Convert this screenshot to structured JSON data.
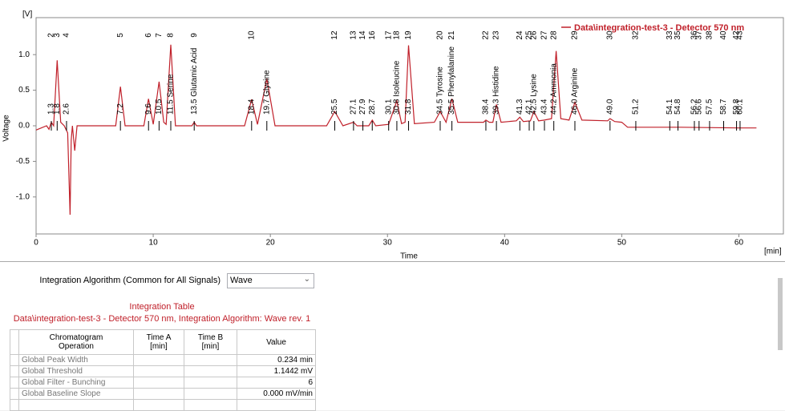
{
  "chart_data": {
    "type": "line",
    "y_unit": "[V]",
    "ylabel": "Voltage",
    "xlabel": "Time",
    "x_unit": "[min]",
    "xlim": [
      0,
      63.8
    ],
    "ylim": [
      -1.52,
      1.52
    ],
    "xticks": [
      0,
      10,
      20,
      30,
      40,
      50,
      60
    ],
    "yticks": [
      {
        "value": -1.0,
        "label": "-1.0"
      },
      {
        "value": -0.5,
        "label": "-0.5"
      },
      {
        "value": 0.0,
        "label": "0.0"
      },
      {
        "value": 0.5,
        "label": "0.5"
      },
      {
        "value": 1.0,
        "label": "1.0"
      }
    ],
    "legend": "top-right",
    "series": [
      {
        "name": "Data\\integration-test-3 - Detector  570 nm",
        "color": "#c0202a",
        "x": [
          0,
          0.9,
          1.1,
          1.3,
          1.5,
          1.8,
          2.1,
          2.4,
          2.7,
          2.9,
          3.0,
          3.1,
          3.3,
          3.5,
          4.0,
          6.8,
          7.2,
          7.6,
          9.2,
          9.6,
          10.0,
          10.5,
          10.9,
          11.1,
          11.5,
          11.9,
          13.3,
          13.5,
          13.7,
          17.8,
          18.4,
          18.9,
          19.7,
          20.4,
          24.8,
          25.5,
          26.2,
          27.1,
          27.4,
          28.4,
          28.7,
          29.0,
          30.1,
          30.8,
          31.2,
          31.5,
          31.8,
          32.3,
          34.0,
          34.5,
          35.0,
          35.5,
          36.0,
          38.2,
          38.4,
          38.7,
          39.0,
          39.3,
          39.7,
          41.0,
          41.3,
          41.6,
          42.2,
          42.5,
          42.9,
          43.4,
          44.0,
          44.4,
          44.8,
          45.5,
          46.0,
          46.6,
          48.8,
          49.0,
          49.4,
          50.0,
          50.5,
          51.2,
          55,
          60,
          61.5
        ],
        "values": [
          -0.06,
          0.0,
          -0.05,
          0.05,
          0.0,
          0.92,
          0.05,
          0.0,
          -0.1,
          -1.25,
          -0.2,
          0.0,
          -0.35,
          0.0,
          0.0,
          0.0,
          0.55,
          0.0,
          0.0,
          0.38,
          0.02,
          0.62,
          0.05,
          0.02,
          1.14,
          0.0,
          0.0,
          0.05,
          0.0,
          0.0,
          0.37,
          0.02,
          0.66,
          0.0,
          0.0,
          0.2,
          0.0,
          0.05,
          0.0,
          0.0,
          0.08,
          0.0,
          0.02,
          0.35,
          0.03,
          0.05,
          1.13,
          0.03,
          0.05,
          0.2,
          0.05,
          0.38,
          0.05,
          0.05,
          0.08,
          0.05,
          0.05,
          0.3,
          0.05,
          0.07,
          0.12,
          0.06,
          0.07,
          0.2,
          0.07,
          0.08,
          0.1,
          1.05,
          0.1,
          0.08,
          0.33,
          0.08,
          0.07,
          0.1,
          0.06,
          0.05,
          -0.02,
          -0.02,
          -0.02,
          -0.03,
          -0.03
        ]
      }
    ],
    "peaks": [
      {
        "time": 1.3,
        "label": "1.3",
        "id": "2"
      },
      {
        "time": 1.8,
        "label": "1.8",
        "id": "3"
      },
      {
        "time": 2.6,
        "label": "2.6",
        "id": "4"
      },
      {
        "time": 7.2,
        "label": "7.2",
        "id": "5"
      },
      {
        "time": 9.6,
        "label": "9.6",
        "id": "6"
      },
      {
        "time": 10.5,
        "label": "10.5",
        "id": "7"
      },
      {
        "time": 11.5,
        "label": "11.5 Serine",
        "id": "8"
      },
      {
        "time": 13.5,
        "label": "13.5 Glutamic Acid",
        "id": "9"
      },
      {
        "time": 18.4,
        "label": "18.4",
        "id": "10"
      },
      {
        "time": 19.7,
        "label": "19.7 Glycine"
      },
      {
        "time": 25.5,
        "label": "25.5",
        "id": "12"
      },
      {
        "time": 27.1,
        "label": "27.1",
        "id": "13"
      },
      {
        "time": 27.9,
        "label": "27.9",
        "id": "14"
      },
      {
        "time": 28.7,
        "label": "28.7",
        "id": "16"
      },
      {
        "time": 30.1,
        "label": "30.1",
        "id": "17"
      },
      {
        "time": 30.8,
        "label": "30.8 Isoleucine",
        "id": "18"
      },
      {
        "time": 31.8,
        "label": "31.8",
        "id": "19"
      },
      {
        "time": 34.5,
        "label": "34.5 Tyrosine",
        "id": "20"
      },
      {
        "time": 35.5,
        "label": "35.5 Phenylalanine",
        "id": "21"
      },
      {
        "time": 38.4,
        "label": "38.4",
        "id": "22"
      },
      {
        "time": 39.3,
        "label": "39.3 Histidine",
        "id": "23"
      },
      {
        "time": 41.3,
        "label": "41.3",
        "id": "24"
      },
      {
        "time": 42.1,
        "label": "42.1",
        "id": "25"
      },
      {
        "time": 42.5,
        "label": "42.5 Lysine",
        "id": "26"
      },
      {
        "time": 43.4,
        "label": "43.4",
        "id": "27"
      },
      {
        "time": 44.2,
        "label": "44.2 Ammonia",
        "id": "28"
      },
      {
        "time": 46.0,
        "label": "46.0 Arginine",
        "id": "29"
      },
      {
        "time": 49.0,
        "label": "49.0",
        "id": "30"
      },
      {
        "time": 51.2,
        "label": "51.2",
        "id": "32"
      },
      {
        "time": 54.1,
        "label": "54.1",
        "id": "33"
      },
      {
        "time": 54.8,
        "label": "54.8",
        "id": "35"
      },
      {
        "time": 56.2,
        "label": "56.2",
        "id": "36"
      },
      {
        "time": 56.6,
        "label": "56.6",
        "id": "37"
      },
      {
        "time": 57.5,
        "label": "57.5",
        "id": "38"
      },
      {
        "time": 58.7,
        "label": "58.7",
        "id": "40"
      },
      {
        "time": 59.8,
        "label": "59.8",
        "id": "42"
      },
      {
        "time": 60.1,
        "label": "60.1",
        "id": "43"
      }
    ]
  },
  "integration": {
    "algorithm_label": "Integration Algorithm (Common for All Signals)",
    "algorithm": "Wave",
    "table_title": "Integration Table",
    "table_subtitle": "Data\\integration-test-3 - Detector  570 nm, Integration Algorithm: Wave rev. 1",
    "columns": [
      "Chromatogram\nOperation",
      "Time A\n[min]",
      "Time B\n[min]",
      "Value"
    ],
    "rows": [
      [
        "Global Peak Width",
        "0.234 min"
      ],
      [
        "Global Threshold",
        "1.1442 mV"
      ],
      [
        "Global Filter - Bunching",
        "6"
      ],
      [
        "Global Baseline Slope",
        "0.000 mV/min"
      ]
    ]
  }
}
